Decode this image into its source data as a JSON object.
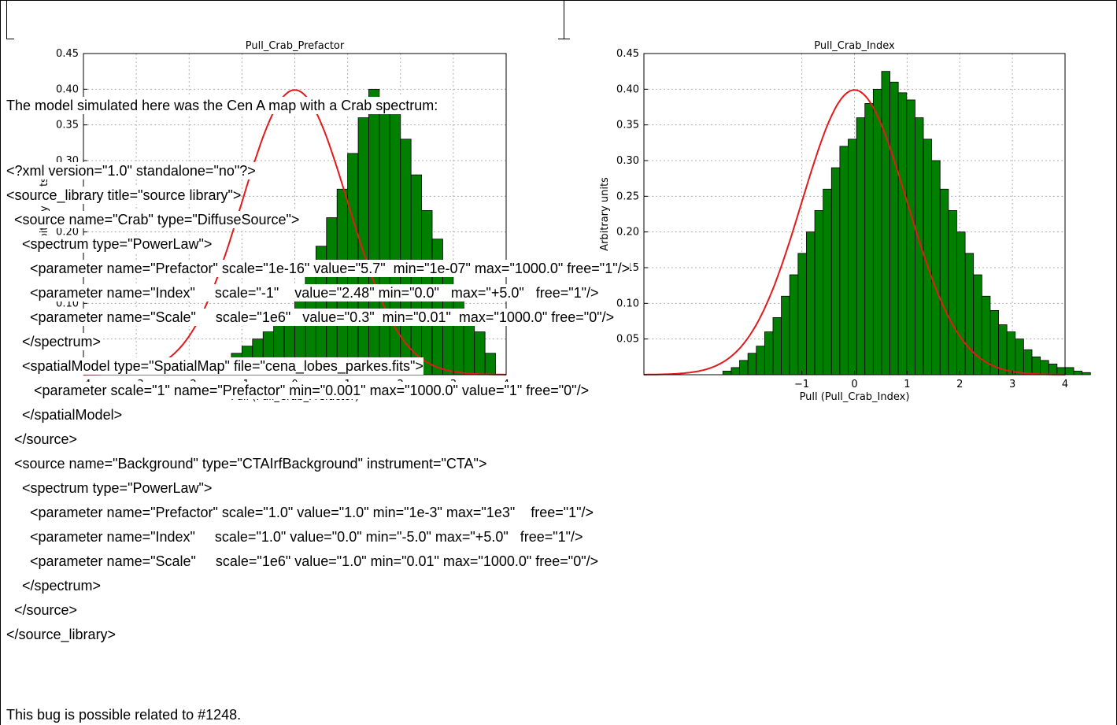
{
  "intro_text": "The model simulated here was the Cen A map with a Crab spectrum:",
  "xml_lines": [
    "<?xml version=\"1.0\" standalone=\"no\"?>",
    "<source_library title=\"source library\">",
    "  <source name=\"Crab\" type=\"DiffuseSource\">",
    "    <spectrum type=\"PowerLaw\">",
    "      <parameter name=\"Prefactor\" scale=\"1e-16\" value=\"5.7\"  min=\"1e-07\" max=\"1000.0\" free=\"1\"/>",
    "      <parameter name=\"Index\"     scale=\"-1\"    value=\"2.48\" min=\"0.0\"   max=\"+5.0\"   free=\"1\"/>",
    "      <parameter name=\"Scale\"     scale=\"1e6\"   value=\"0.3\"  min=\"0.01\"  max=\"1000.0\" free=\"0\"/>",
    "    </spectrum>",
    "    <spatialModel type=\"SpatialMap\" file=\"cena_lobes_parkes.fits\">",
    "       <parameter scale=\"1\" name=\"Prefactor\" min=\"0.001\" max=\"1000.0\" value=\"1\" free=\"0\"/>",
    "    </spatialModel>",
    "  </source>",
    "  <source name=\"Background\" type=\"CTAIrfBackground\" instrument=\"CTA\">",
    "    <spectrum type=\"PowerLaw\">",
    "      <parameter name=\"Prefactor\" scale=\"1.0\" value=\"1.0\" min=\"1e-3\" max=\"1e3\"    free=\"1\"/>",
    "      <parameter name=\"Index\"     scale=\"1.0\" value=\"0.0\" min=\"-5.0\" max=\"+5.0\"   free=\"1\"/>",
    "      <parameter name=\"Scale\"     scale=\"1e6\" value=\"1.0\" min=\"0.01\" max=\"1000.0\" free=\"0\"/>",
    "    </spectrum>",
    "  </source>",
    "</source_library>"
  ],
  "footer_text": "This bug is possible related to #1248.",
  "colors": {
    "bar_fill": "#007f00",
    "curve": "#e31a1c",
    "grid": "#b0b0b0"
  },
  "chart_data": [
    {
      "type": "bar",
      "title": "Pull_Crab_Prefactor",
      "xlabel": "Pull (Pull_Crab_Prefactor)",
      "ylabel": "Arbitrary units",
      "xlim": [
        -4,
        4
      ],
      "ylim": [
        0,
        0.45
      ],
      "bin_width": 0.2,
      "bin_start": -2.0,
      "values": [
        0.01,
        0.01,
        0.02,
        0.02,
        0.03,
        0.04,
        0.05,
        0.06,
        0.07,
        0.09,
        0.11,
        0.14,
        0.18,
        0.22,
        0.26,
        0.31,
        0.36,
        0.4,
        0.38,
        0.37,
        0.33,
        0.28,
        0.23,
        0.19,
        0.15,
        0.11,
        0.08,
        0.06,
        0.03
      ],
      "curve": "gaussian mean 0 sigma 1",
      "grid": true
    },
    {
      "type": "bar",
      "title": "Pull_Crab_Index",
      "xlabel": "Pull (Pull_Crab_Index)",
      "ylabel": "Arbitrary units",
      "xlim": [
        -4,
        4
      ],
      "xticks": [
        -1,
        0,
        1,
        2,
        3,
        4
      ],
      "ylim": [
        0,
        0.45
      ],
      "yticks": [
        0.05,
        0.1,
        0.15,
        0.2,
        0.25,
        0.3,
        0.35,
        0.4,
        0.45
      ],
      "bin_width": 0.1587,
      "bin_start": -2.5,
      "values": [
        0.005,
        0.01,
        0.02,
        0.03,
        0.04,
        0.06,
        0.08,
        0.11,
        0.14,
        0.17,
        0.2,
        0.23,
        0.26,
        0.29,
        0.32,
        0.33,
        0.36,
        0.38,
        0.4,
        0.425,
        0.41,
        0.395,
        0.385,
        0.36,
        0.33,
        0.3,
        0.26,
        0.23,
        0.2,
        0.17,
        0.14,
        0.11,
        0.09,
        0.07,
        0.06,
        0.05,
        0.035,
        0.025,
        0.02,
        0.015,
        0.01,
        0.01,
        0.005,
        0.003
      ],
      "curve": "gaussian mean 0 sigma 1",
      "grid": true
    }
  ]
}
